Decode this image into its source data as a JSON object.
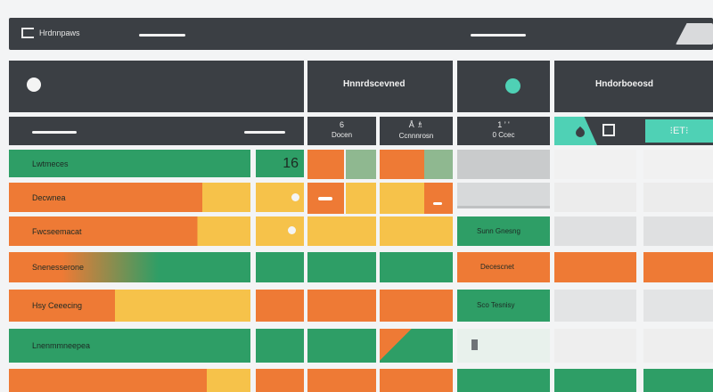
{
  "app": {
    "title": "Hrdnnpaws",
    "header_icon": "app-logo-icon",
    "header_right_icon": "tab-corner-icon"
  },
  "left_panel": {
    "dot_icon": "status-dot-icon",
    "count": "16",
    "rows": [
      {
        "label": "Lwtmeces"
      },
      {
        "label": "Decwnea"
      },
      {
        "label": "Fwcseemacat"
      },
      {
        "label": "Snenesserone"
      },
      {
        "label": "Hsy Ceeecing"
      },
      {
        "label": "Lnenmmneepea"
      }
    ]
  },
  "mid_panel": {
    "title": "Hnnrdscevned",
    "columns": [
      {
        "top": "6",
        "label": "Docen"
      },
      {
        "top": "Å ♗",
        "label": "Ccnnnrosn"
      }
    ]
  },
  "right_a": {
    "dot_icon": "teal-dot-icon",
    "col_top": "1 ’ '",
    "col_label": "0 Ccec",
    "rows": [
      {
        "label": "Sunn Gnesng"
      },
      {
        "label": "Decescnet"
      },
      {
        "label": "Sco Tesnisy"
      }
    ]
  },
  "right_b": {
    "title": "Hndorboeosd",
    "tab1_icon": "drop-icon",
    "tab2_icon": "doc-icon",
    "tab3_text": "⁝ET⁝"
  },
  "colors": {
    "dark": "#3b3f44",
    "green": "#2e9e66",
    "orange": "#ee7a35",
    "yellow": "#f6c24a",
    "teal": "#4fd1b5"
  }
}
